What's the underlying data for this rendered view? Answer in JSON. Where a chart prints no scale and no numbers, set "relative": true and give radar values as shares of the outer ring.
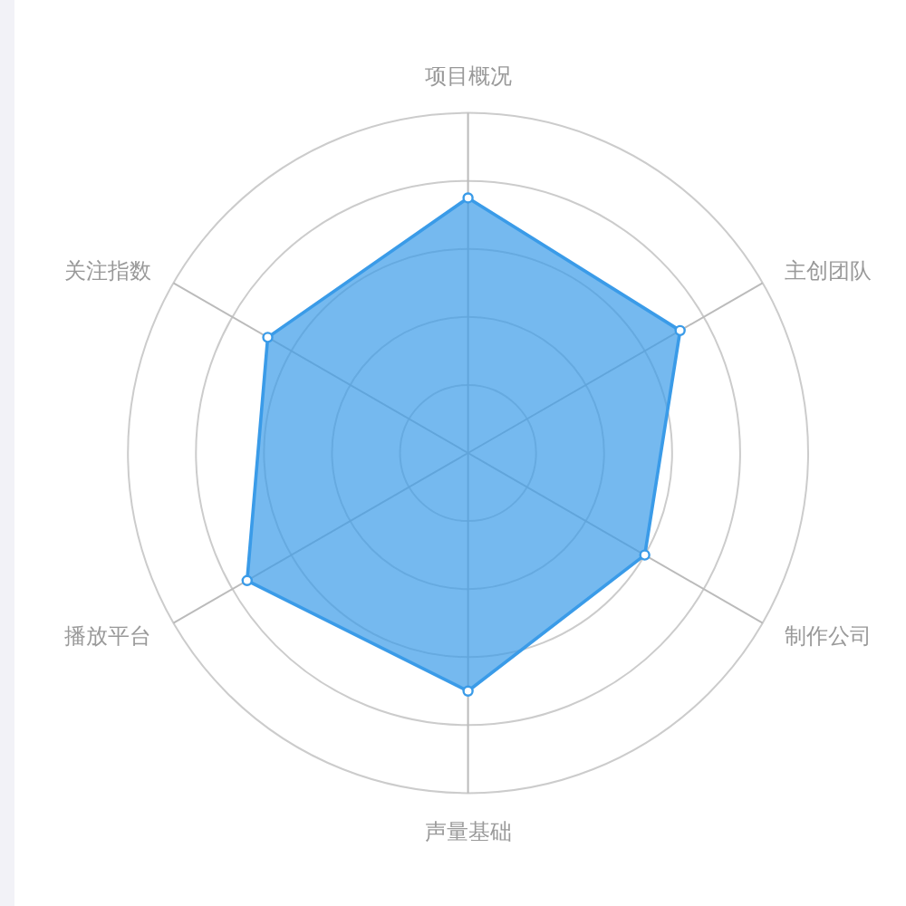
{
  "chart_data": {
    "type": "radar",
    "categories": [
      "项目概况",
      "主创团队",
      "制作公司",
      "声量基础",
      "播放平台",
      "关注指数"
    ],
    "relative": true,
    "grid": true,
    "marker": "circle",
    "series": [
      {
        "color": "#3a9be8",
        "values": [
          0.75,
          0.72,
          0.6,
          0.7,
          0.75,
          0.68
        ]
      }
    ]
  }
}
